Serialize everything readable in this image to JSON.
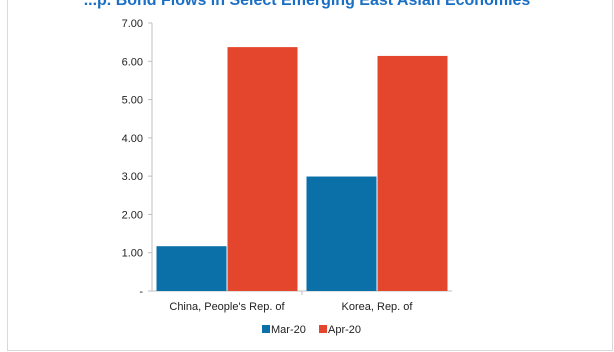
{
  "chart_data": {
    "type": "bar",
    "title": "...p. Bond Flows in Select Emerging East Asian Economies",
    "categories": [
      "China, People's Rep. of",
      "Korea, Rep. of"
    ],
    "series": [
      {
        "name": "Mar-20",
        "color": "#0b6fa8",
        "values": [
          1.17,
          2.99
        ]
      },
      {
        "name": "Apr-20",
        "color": "#e4452d",
        "values": [
          6.37,
          6.14
        ]
      }
    ],
    "y_ticks": [
      "-",
      "1.00",
      "2.00",
      "3.00",
      "4.00",
      "5.00",
      "6.00",
      "7.00"
    ],
    "ylim": [
      0,
      7
    ],
    "grid": false,
    "legend_position": "bottom"
  }
}
